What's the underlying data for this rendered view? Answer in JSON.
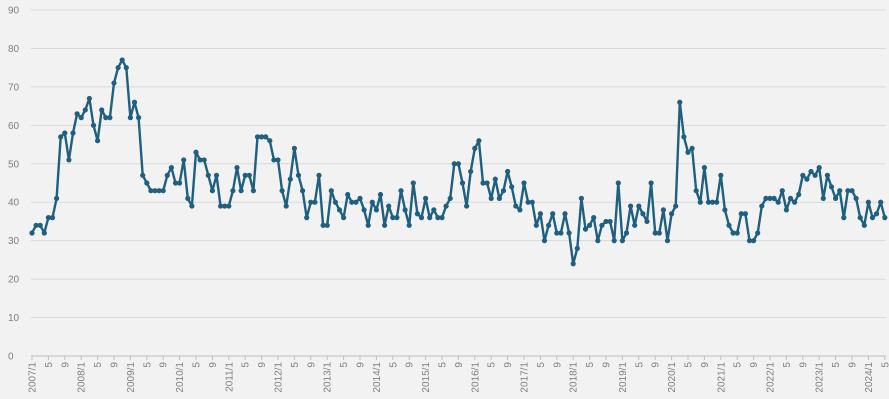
{
  "chart_data": {
    "type": "line",
    "title": "",
    "xlabel": "",
    "ylabel": "",
    "ylim": [
      0,
      90
    ],
    "y_ticks": [
      "0",
      "10",
      "20",
      "30",
      "40",
      "50",
      "60",
      "70",
      "80",
      "90"
    ],
    "grid": true,
    "legend": "none",
    "series_color": "#1f5f7f",
    "x_tick_labels": [
      "2007/1",
      "5",
      "9",
      "2008/1",
      "5",
      "9",
      "2009/1",
      "5",
      "9",
      "2010/1",
      "5",
      "9",
      "2011/1",
      "5",
      "9",
      "2012/1",
      "5",
      "9",
      "2013/1",
      "5",
      "9",
      "2014/1",
      "5",
      "9",
      "2015/1",
      "5",
      "9",
      "2016/1",
      "5",
      "9",
      "2017/1",
      "5",
      "9",
      "2018/1",
      "5",
      "9",
      "2019/1",
      "5",
      "9",
      "2020/1",
      "5",
      "9",
      "2021/1",
      "5",
      "9",
      "2022/1",
      "5",
      "9",
      "2023/1",
      "5",
      "9",
      "2024/1",
      "5"
    ],
    "series": [
      {
        "values": [
          32,
          34,
          34,
          32,
          36,
          36,
          41,
          57,
          58,
          51,
          58,
          63,
          62,
          64,
          67,
          60,
          56,
          64,
          62,
          62,
          71,
          75,
          77,
          75,
          62,
          66,
          62,
          47,
          45,
          43,
          43,
          43,
          43,
          47,
          49,
          45,
          45,
          51,
          41,
          39,
          53,
          51,
          51,
          47,
          43,
          47,
          39,
          39,
          39,
          43,
          49,
          43,
          47,
          47,
          43,
          57,
          57,
          57,
          56,
          51,
          51,
          43,
          39,
          46,
          54,
          47,
          43,
          36,
          40,
          40,
          47,
          34,
          34,
          43,
          40,
          38,
          36,
          42,
          40,
          40,
          41,
          38,
          34,
          40,
          38,
          42,
          34,
          39,
          36,
          36,
          43,
          38,
          34,
          45,
          37,
          36,
          41,
          36,
          38,
          36,
          36,
          39,
          41,
          50,
          50,
          45,
          39,
          48,
          54,
          56,
          45,
          45,
          41,
          46,
          41,
          43,
          48,
          44,
          39,
          38,
          45,
          40,
          40,
          34,
          37,
          30,
          34,
          37,
          32,
          32,
          37,
          32,
          24,
          28,
          41,
          33,
          34,
          36,
          30,
          34,
          35,
          35,
          30,
          45,
          30,
          32,
          39,
          34,
          39,
          37,
          35,
          45,
          32,
          32,
          38,
          30,
          37,
          39,
          66,
          57,
          53,
          54,
          43,
          40,
          49,
          40,
          40,
          40,
          47,
          38,
          34,
          32,
          32,
          37,
          37,
          30,
          30,
          32,
          39,
          41,
          41,
          41,
          40,
          43,
          38,
          41,
          40,
          42,
          47,
          46,
          48,
          47,
          49,
          41,
          47,
          44,
          41,
          43,
          36,
          43,
          43,
          41,
          36,
          34,
          40,
          36,
          37,
          40,
          36
        ]
      }
    ]
  }
}
